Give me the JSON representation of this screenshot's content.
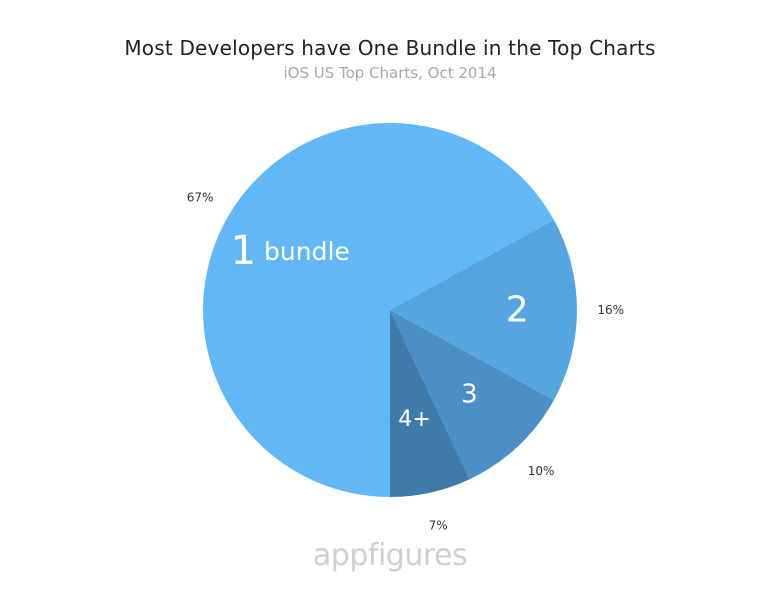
{
  "chart_data": {
    "type": "pie",
    "title": "Most Developers have One Bundle in the Top Charts",
    "subtitle": "iOS US Top Charts, Oct 2014",
    "categories": [
      "1 bundle",
      "2",
      "3",
      "4+"
    ],
    "values": [
      67,
      16,
      10,
      7
    ],
    "value_labels": [
      "67%",
      "16%",
      "10%",
      "7%"
    ],
    "colors": [
      "#62b8f6",
      "#57a5e0",
      "#4b8fc6",
      "#3f7bab"
    ],
    "legend": "none"
  },
  "watermark": "appfigures"
}
